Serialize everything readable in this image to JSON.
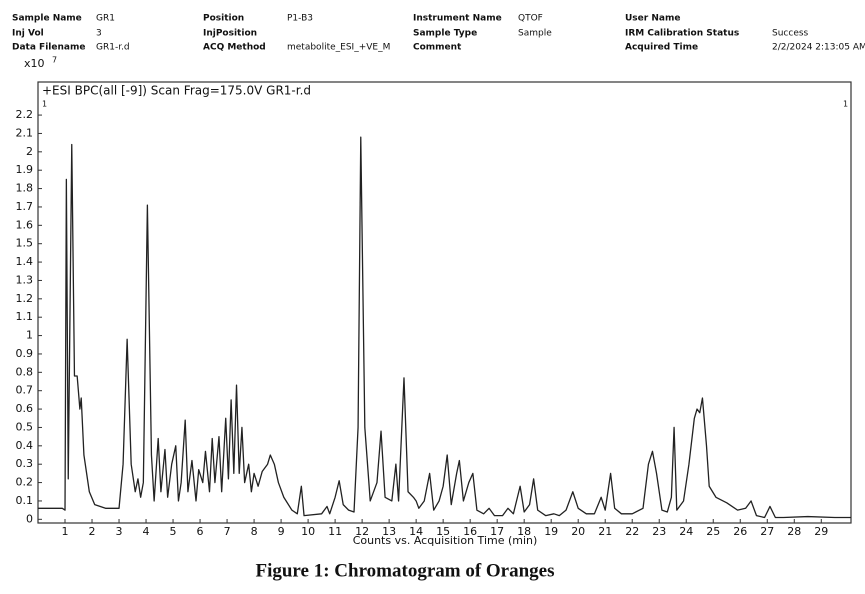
{
  "header": {
    "fields": [
      [
        {
          "label": "Sample Name",
          "value": "GR1"
        },
        {
          "label": "Position",
          "value": "P1-B3"
        },
        {
          "label": "Instrument Name",
          "value": "QTOF"
        },
        {
          "label": "User Name"
        }
      ],
      [
        {
          "label": "Inj Vol",
          "value": "3"
        },
        {
          "label": "InjPosition"
        },
        {
          "label": "Sample Type",
          "value": "Sample"
        },
        {
          "label": "IRM Calibration Status",
          "value": "Success"
        }
      ],
      [
        {
          "label": "Data Filename",
          "value": "GR1-r.d"
        },
        {
          "label": "ACQ Method",
          "value": "metabolite_ESI_+VE_M"
        },
        {
          "label": "Comment"
        },
        {
          "label": "Acquired Time",
          "value": "2/2/2024 2:13:05 AM"
        }
      ]
    ]
  },
  "chart_data": {
    "type": "line",
    "title": "+ESI BPC(all [-9]) Scan Frag=175.0V GR1-r.d",
    "y_multiplier": {
      "base": "x10",
      "exponent": "7"
    },
    "corner_label": "1",
    "x_label": "Counts vs. Acquisition Time (min)",
    "color": "#222222",
    "x": [
      0,
      0.9,
      1.0,
      1.05,
      1.12,
      1.25,
      1.35,
      1.45,
      1.55,
      1.6,
      1.7,
      1.9,
      2.1,
      2.5,
      3.0,
      3.15,
      3.3,
      3.45,
      3.6,
      3.7,
      3.8,
      3.9,
      4.05,
      4.2,
      4.3,
      4.45,
      4.55,
      4.7,
      4.8,
      4.95,
      5.1,
      5.2,
      5.3,
      5.45,
      5.55,
      5.7,
      5.85,
      5.95,
      6.1,
      6.2,
      6.35,
      6.45,
      6.55,
      6.7,
      6.8,
      6.95,
      7.05,
      7.15,
      7.25,
      7.35,
      7.45,
      7.55,
      7.65,
      7.8,
      7.9,
      8.0,
      8.15,
      8.3,
      8.5,
      8.6,
      8.75,
      8.9,
      9.1,
      9.4,
      9.6,
      9.75,
      9.85,
      10.5,
      10.7,
      10.8,
      11.0,
      11.15,
      11.3,
      11.5,
      11.7,
      11.85,
      11.95,
      12.1,
      12.3,
      12.55,
      12.7,
      12.85,
      13.1,
      13.25,
      13.35,
      13.55,
      13.7,
      13.9,
      14.0,
      14.1,
      14.3,
      14.5,
      14.65,
      14.85,
      15.0,
      15.15,
      15.3,
      15.5,
      15.6,
      15.75,
      15.95,
      16.1,
      16.25,
      16.5,
      16.7,
      16.9,
      17.2,
      17.4,
      17.6,
      17.85,
      18.0,
      18.2,
      18.35,
      18.5,
      18.8,
      19.1,
      19.3,
      19.55,
      19.8,
      20.0,
      20.3,
      20.6,
      20.85,
      21.0,
      21.2,
      21.35,
      21.6,
      22.0,
      22.4,
      22.6,
      22.75,
      22.9,
      23.1,
      23.3,
      23.45,
      23.55,
      23.65,
      23.9,
      24.1,
      24.3,
      24.4,
      24.5,
      24.6,
      24.75,
      24.85,
      25.1,
      25.5,
      25.9,
      26.2,
      26.4,
      26.6,
      26.9,
      27.1,
      27.3,
      27.6,
      28.5,
      29.5,
      30.1
    ],
    "values": [
      0.06,
      0.06,
      0.05,
      1.85,
      0.22,
      2.04,
      0.78,
      0.78,
      0.6,
      0.66,
      0.35,
      0.15,
      0.08,
      0.06,
      0.06,
      0.3,
      0.98,
      0.3,
      0.15,
      0.22,
      0.12,
      0.2,
      1.71,
      0.35,
      0.1,
      0.44,
      0.15,
      0.38,
      0.12,
      0.3,
      0.4,
      0.1,
      0.2,
      0.54,
      0.15,
      0.32,
      0.1,
      0.27,
      0.2,
      0.37,
      0.15,
      0.44,
      0.2,
      0.45,
      0.15,
      0.55,
      0.22,
      0.65,
      0.25,
      0.73,
      0.25,
      0.5,
      0.2,
      0.3,
      0.15,
      0.25,
      0.18,
      0.26,
      0.3,
      0.35,
      0.3,
      0.2,
      0.12,
      0.05,
      0.03,
      0.18,
      0.02,
      0.03,
      0.07,
      0.03,
      0.12,
      0.21,
      0.08,
      0.05,
      0.04,
      0.5,
      2.08,
      0.5,
      0.1,
      0.2,
      0.48,
      0.12,
      0.1,
      0.3,
      0.1,
      0.77,
      0.15,
      0.12,
      0.1,
      0.06,
      0.1,
      0.25,
      0.05,
      0.1,
      0.18,
      0.35,
      0.08,
      0.25,
      0.32,
      0.1,
      0.2,
      0.25,
      0.05,
      0.03,
      0.06,
      0.02,
      0.02,
      0.06,
      0.03,
      0.18,
      0.04,
      0.08,
      0.22,
      0.05,
      0.02,
      0.03,
      0.02,
      0.05,
      0.15,
      0.06,
      0.03,
      0.03,
      0.12,
      0.05,
      0.25,
      0.06,
      0.03,
      0.03,
      0.06,
      0.3,
      0.37,
      0.25,
      0.05,
      0.04,
      0.12,
      0.5,
      0.05,
      0.1,
      0.3,
      0.55,
      0.6,
      0.58,
      0.66,
      0.4,
      0.18,
      0.12,
      0.09,
      0.05,
      0.06,
      0.1,
      0.02,
      0.01,
      0.07,
      0.01,
      0.01,
      0.015,
      0.01,
      0.01
    ],
    "xlim": [
      0,
      30.1
    ],
    "ylim": [
      -0.02,
      2.38
    ],
    "xticks": [
      1,
      2,
      3,
      4,
      5,
      6,
      7,
      8,
      9,
      10,
      11,
      12,
      13,
      14,
      15,
      16,
      17,
      18,
      19,
      20,
      21,
      22,
      23,
      24,
      25,
      26,
      27,
      28,
      29
    ],
    "yticks": [
      0,
      0.1,
      0.2,
      0.3,
      0.4,
      0.5,
      0.6,
      0.7,
      0.8,
      0.9,
      1,
      1.1,
      1.2,
      1.3,
      1.4,
      1.5,
      1.6,
      1.7,
      1.8,
      1.9,
      2,
      2.1,
      2.2
    ],
    "caption": "Figure 1: Chromatogram of Oranges"
  }
}
